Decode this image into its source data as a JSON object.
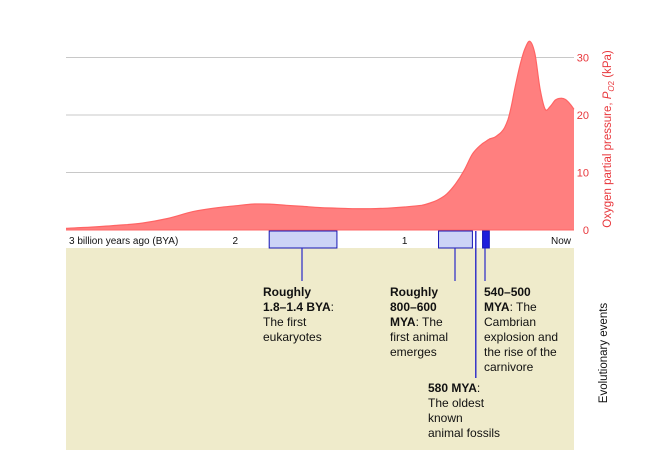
{
  "chart_data": {
    "type": "area",
    "x_axis": {
      "reversed": true,
      "range_bya": [
        3,
        0
      ],
      "ticks": [
        {
          "x": 3,
          "label": "3 billion years ago (BYA)"
        },
        {
          "x": 2,
          "label": "2"
        },
        {
          "x": 1,
          "label": "1"
        },
        {
          "x": 0,
          "label": "Now"
        }
      ]
    },
    "y_axis": {
      "label": "Oxygen partial pressure, PO2 (kPa)",
      "label_main": "Oxygen partial pressure, ",
      "label_p": "P",
      "label_sub": "O",
      "label_sub2": "2",
      "label_unit": " (kPa)",
      "ylim": [
        0,
        33
      ],
      "ticks": [
        0,
        10,
        20,
        30
      ],
      "grid": true
    },
    "series": [
      {
        "color": "#ff7f7f",
        "x": [
          3.0,
          2.85,
          2.7,
          2.55,
          2.4,
          2.25,
          2.1,
          2.0,
          1.9,
          1.8,
          1.7,
          1.6,
          1.5,
          1.4,
          1.3,
          1.2,
          1.1,
          1.0,
          0.9,
          0.85,
          0.8,
          0.75,
          0.7,
          0.65,
          0.6,
          0.55,
          0.52,
          0.5,
          0.47,
          0.45,
          0.43,
          0.41,
          0.39,
          0.37,
          0.35,
          0.32,
          0.29,
          0.26,
          0.23,
          0.2,
          0.17,
          0.14,
          0.11,
          0.08,
          0.05,
          0.02,
          0.0
        ],
        "y": [
          0.3,
          0.5,
          0.8,
          1.2,
          2.0,
          3.2,
          3.9,
          4.2,
          4.5,
          4.5,
          4.3,
          4.1,
          3.9,
          3.8,
          3.7,
          3.7,
          3.8,
          4.0,
          4.3,
          4.7,
          5.3,
          6.3,
          8.0,
          10.3,
          13.2,
          14.8,
          15.4,
          15.8,
          16.1,
          16.5,
          17.0,
          17.8,
          19.2,
          21.5,
          24.5,
          28.5,
          31.5,
          32.8,
          30.5,
          24.5,
          21.0,
          21.5,
          22.6,
          22.9,
          22.7,
          21.8,
          21.0
        ]
      }
    ],
    "events_label": "Evolutionary events",
    "events": [
      {
        "range_bya": [
          1.8,
          1.4
        ],
        "title": "Roughly 1.8–1.4 BYA",
        "title_lines": [
          "Roughly",
          "1.8–1.4 BYA"
        ],
        "suffix": ":",
        "lines": [
          "The first",
          "eukaryotes"
        ]
      },
      {
        "range_bya": [
          0.8,
          0.6
        ],
        "title": "Roughly 800–600 MYA",
        "title_lines": [
          "Roughly",
          "800–600"
        ],
        "title_tail": "MYA",
        "suffix": ": The",
        "lines": [
          "first animal",
          "emerges"
        ]
      },
      {
        "at_bya": 0.58,
        "title": "580 MYA",
        "title_lines": [
          "580 MYA"
        ],
        "suffix": ":",
        "lines": [
          "The oldest",
          "known",
          "animal fossils"
        ]
      },
      {
        "range_bya": [
          0.54,
          0.5
        ],
        "title": "540–500 MYA",
        "title_lines": [
          "540–500"
        ],
        "title_tail": "MYA",
        "suffix": ": The",
        "lines": [
          "Cambrian",
          "explosion and",
          "the rise of the",
          "carnivore"
        ]
      }
    ],
    "colors": {
      "area_fill": "#ff7f7f",
      "area_stroke": "#ff6464",
      "grid": "#c8c8c8",
      "axis_red": "#e8373c",
      "events_bg": "#efebcb",
      "event_box_fill": "#ccd3f6",
      "event_box_stroke": "#1616b4",
      "event_solid": "#1e1edc",
      "connector": "#2828c8"
    }
  }
}
